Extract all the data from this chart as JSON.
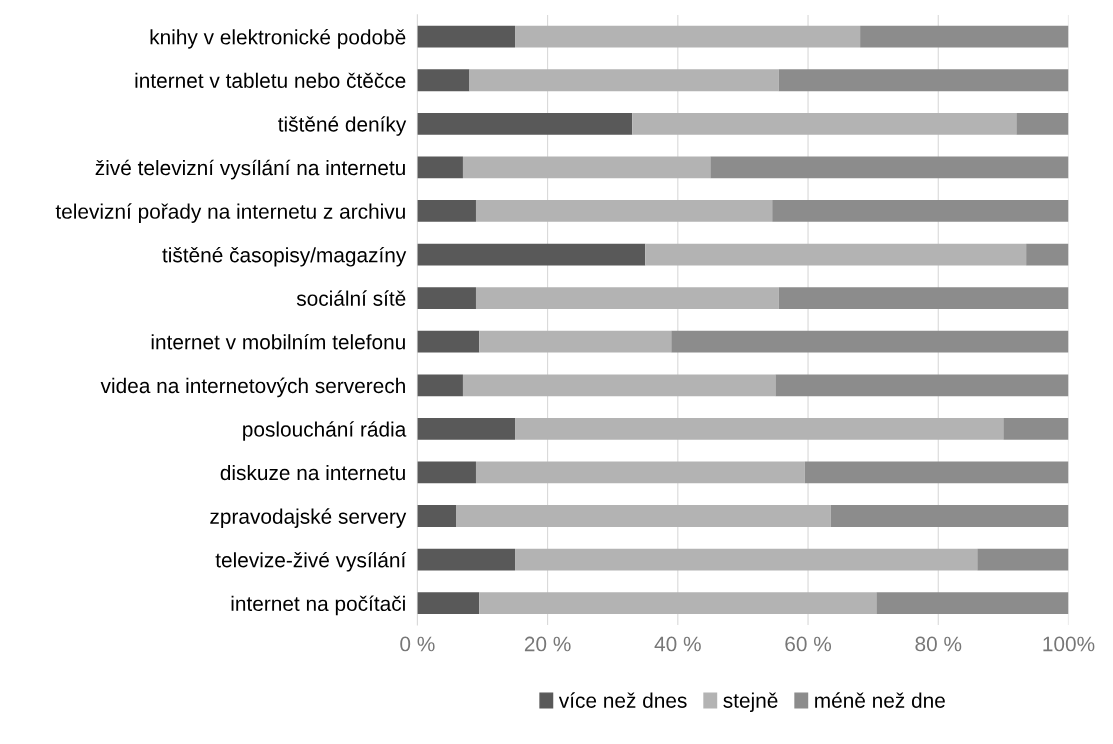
{
  "chart_data": {
    "type": "bar",
    "orientation": "horizontal",
    "stacked": true,
    "categories": [
      "knihy v elektronické podobě",
      "internet v tabletu nebo čtěčce",
      "tištěné deníky",
      "živé televizní vysílání na internetu",
      "televizní pořady na internetu z archivu",
      "tištěné časopisy/magazíny",
      "sociální sítě",
      "internet v mobilním telefonu",
      "videa na internetových serverech",
      "poslouchání rádia",
      "diskuze na internetu",
      "zpravodajské servery",
      "televize-živé vysílání",
      "internet na počítači"
    ],
    "series": [
      {
        "name": "více než dnes",
        "color": "#595959",
        "values": [
          15,
          8,
          33,
          7,
          9,
          35,
          9,
          9.5,
          7,
          15,
          9,
          6,
          15,
          9.5
        ]
      },
      {
        "name": "stejně",
        "color": "#b3b3b3",
        "values": [
          53,
          47.5,
          59,
          38,
          45.5,
          58.5,
          46.5,
          29.5,
          48,
          75,
          50.5,
          57.5,
          71,
          61
        ]
      },
      {
        "name": "méně než dne",
        "color": "#8c8c8c",
        "values": [
          32,
          44.5,
          8,
          55,
          45.5,
          6.5,
          44.5,
          61,
          45,
          10,
          40.5,
          36.5,
          14,
          29.5
        ]
      }
    ],
    "xlim": [
      0,
      100
    ],
    "xticks": [
      {
        "value": 0,
        "label": "0 %"
      },
      {
        "value": 20,
        "label": "20 %"
      },
      {
        "value": 40,
        "label": "40 %"
      },
      {
        "value": 60,
        "label": "60 %"
      },
      {
        "value": 80,
        "label": "80 %"
      },
      {
        "value": 100,
        "label": "100%"
      }
    ],
    "grid": "x",
    "legend": "bottom"
  }
}
